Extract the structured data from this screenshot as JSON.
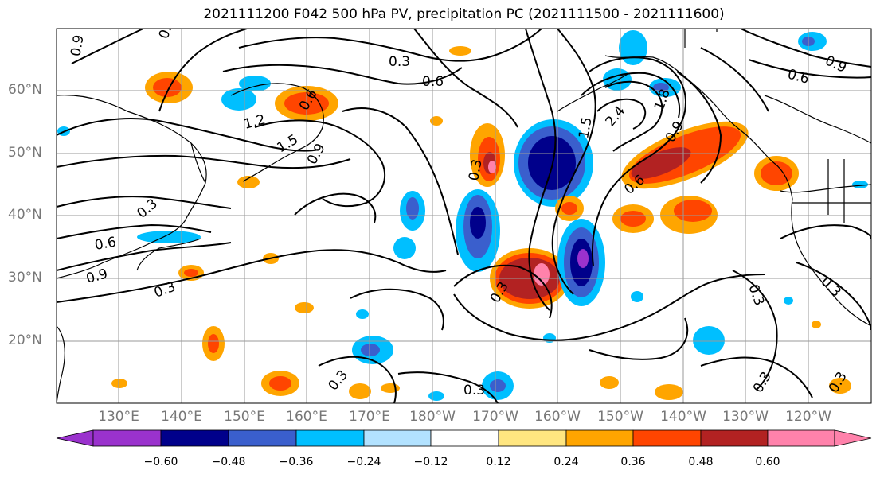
{
  "title": "2021111200 F042 500 hPa PV, precipitation PC (2021111500 - 2021111600)",
  "lat_ticks": [
    "60°N",
    "50°N",
    "40°N",
    "30°N",
    "20°N"
  ],
  "lon_ticks": [
    "130°E",
    "140°E",
    "150°E",
    "160°E",
    "170°E",
    "180°W",
    "170°W",
    "160°W",
    "150°W",
    "140°W",
    "130°W",
    "120°W"
  ],
  "colorbar": {
    "labels": [
      "−0.60",
      "−0.48",
      "−0.36",
      "−0.24",
      "−0.12",
      "0.12",
      "0.24",
      "0.36",
      "0.48",
      "0.60"
    ],
    "colors": [
      "#9a32cd",
      "#00008b",
      "#3a5fcd",
      "#00bfff",
      "#b2e2ff",
      "#ffffff",
      "#ffe680",
      "#ffa500",
      "#ff4500",
      "#b22222",
      "#ff82ab"
    ]
  },
  "contour_labels": [
    "0.3",
    "0.6",
    "0.9",
    "1.2",
    "1.5",
    "1.8",
    "2.4"
  ],
  "map_extent": {
    "lon": [
      "120°E",
      "115°W"
    ],
    "lat": [
      "10°N",
      "70°N"
    ]
  }
}
